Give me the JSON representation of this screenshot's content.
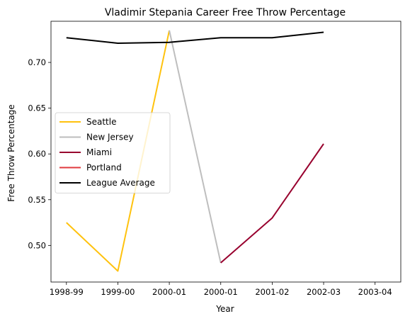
{
  "chart_data": {
    "type": "line",
    "title": "Vladimir Stepania Career Free Throw Percentage",
    "xlabel": "Year",
    "ylabel": "Free Throw Percentage",
    "x_tick_labels": [
      "1998-99",
      "1999-00",
      "2000-01",
      "2000-01",
      "2001-02",
      "2002-03",
      "2003-04"
    ],
    "y_ticks": [
      0.5,
      0.55,
      0.6,
      0.65,
      0.7
    ],
    "y_tick_labels": [
      "0.50",
      "0.55",
      "0.60",
      "0.65",
      "0.70"
    ],
    "xlim": [
      -0.3,
      6.5
    ],
    "ylim": [
      0.46,
      0.745
    ],
    "grid": false,
    "legend_position": "center-left",
    "series": [
      {
        "name": "Seattle",
        "color": "#FFC20E",
        "points": [
          [
            0,
            0.525
          ],
          [
            1,
            0.472
          ],
          [
            2,
            0.735
          ]
        ]
      },
      {
        "name": "New Jersey",
        "color": "#BEBEBE",
        "points": [
          [
            2,
            0.735
          ],
          [
            3,
            0.481
          ]
        ]
      },
      {
        "name": "Miami",
        "color": "#98002E",
        "points": [
          [
            3,
            0.481
          ],
          [
            4,
            0.53
          ],
          [
            5,
            0.611
          ]
        ]
      },
      {
        "name": "Portland",
        "color": "#E03A3E",
        "points": []
      },
      {
        "name": "League Average",
        "color": "#000000",
        "points": [
          [
            0,
            0.727
          ],
          [
            1,
            0.721
          ],
          [
            2,
            0.722
          ],
          [
            3,
            0.727
          ],
          [
            4,
            0.727
          ],
          [
            5,
            0.733
          ]
        ]
      }
    ]
  }
}
